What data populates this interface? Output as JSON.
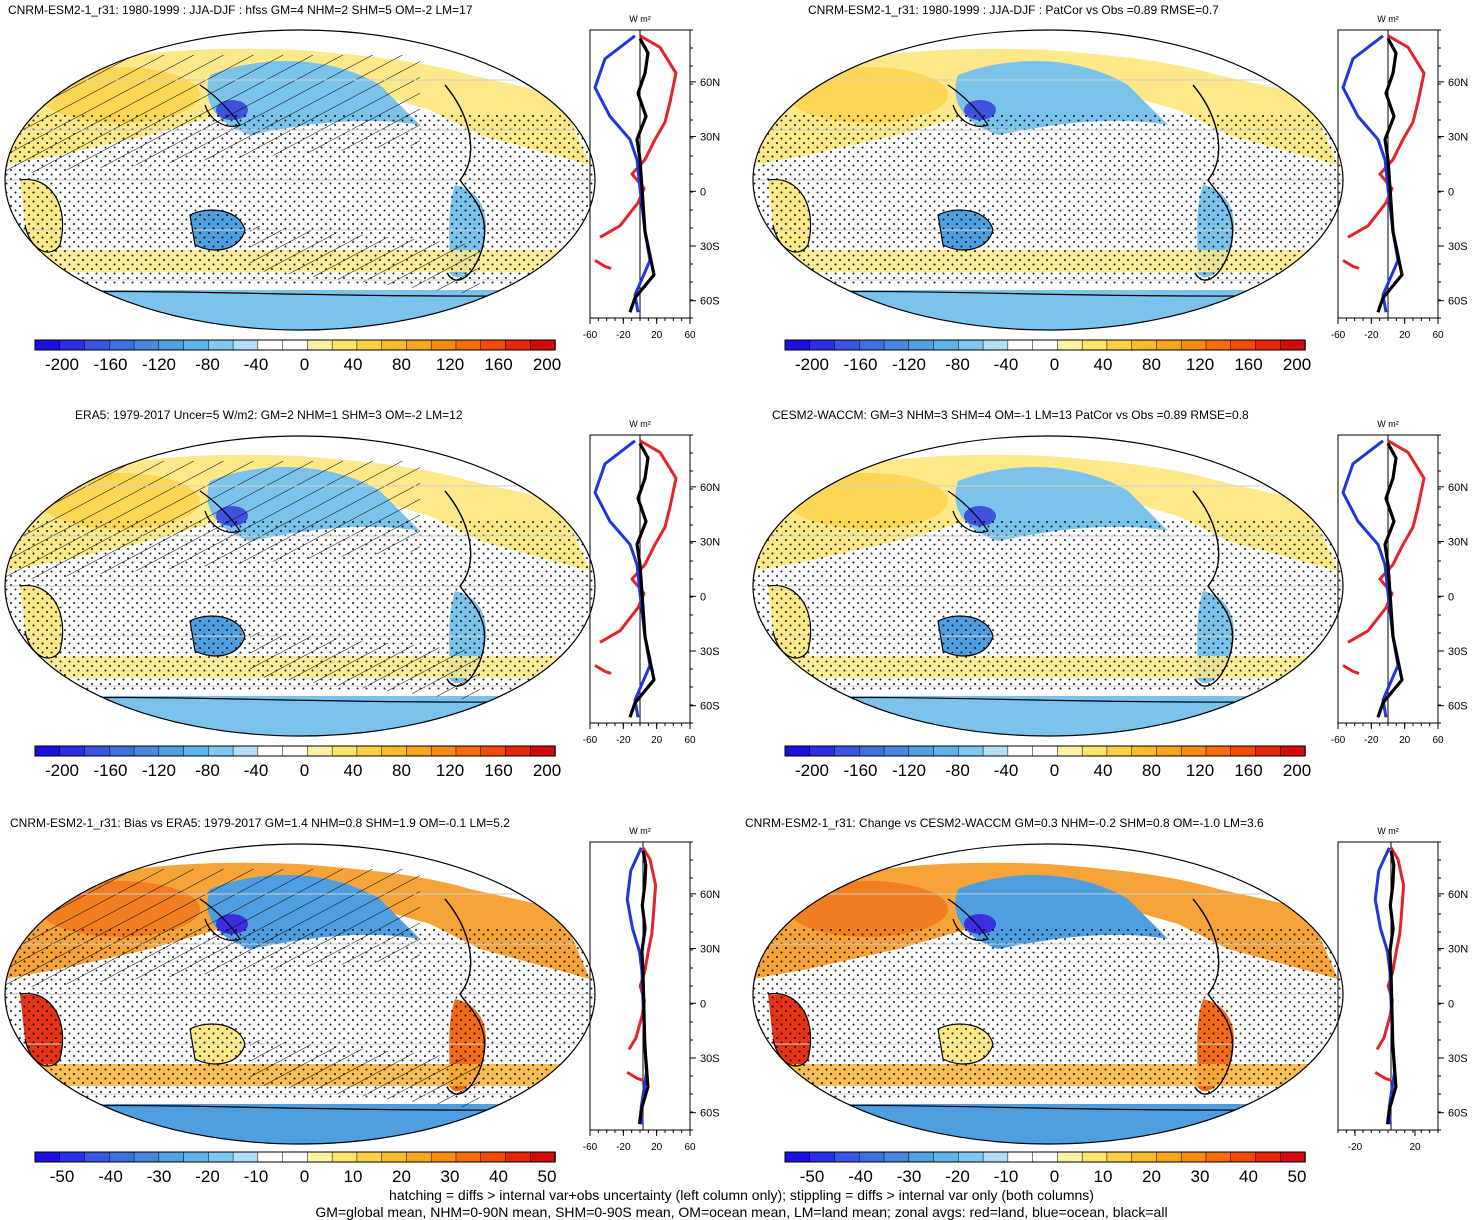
{
  "figure": {
    "colors": {
      "land": "#e4232a",
      "ocean": "#1f35e0",
      "all": "#000000",
      "scale_main": [
        "#1a10e0",
        "#2a2ee6",
        "#3a55e0",
        "#3f6fdd",
        "#4a88e0",
        "#51a1e3",
        "#5cb6ea",
        "#80c8ee",
        "#b3def3",
        "#ffffff",
        "#ffffff",
        "#fdf2a6",
        "#fde46a",
        "#fcd047",
        "#fbba2b",
        "#f9a41c",
        "#f88b12",
        "#f56d0b",
        "#f04b06",
        "#e5260a",
        "#d10b0b"
      ]
    },
    "colorbars": {
      "main_labels": [
        "-200",
        "-160",
        "-120",
        "-80",
        "-40",
        "0",
        "40",
        "80",
        "120",
        "160",
        "200"
      ],
      "diff_labels": [
        "-50",
        "-40",
        "-30",
        "-20",
        "-10",
        "0",
        "10",
        "20",
        "30",
        "40",
        "50"
      ]
    },
    "zonal": {
      "units": "W m²",
      "lat_labels": [
        "60N",
        "30N",
        "0",
        "30S",
        "60S"
      ],
      "x_labels_main": [
        "-60",
        "-20",
        "20",
        "60"
      ],
      "x_labels_diff_right": [
        "-20",
        "20"
      ]
    },
    "panels": [
      {
        "id": "p1",
        "title": "CNRM-ESM2-1_r31: 1980-1999 : JJA-DJF : hfss GM=4 NHM=2 SHM=5 OM=-2 LM=17"
      },
      {
        "id": "p2",
        "title": "CNRM-ESM2-1_r31: 1980-1999 : JJA-DJF : PatCor vs Obs =0.89 RMSE=0.7"
      },
      {
        "id": "p3",
        "title": "ERA5: 1979-2017 Uncer=5 W/m2: GM=2 NHM=1 SHM=3 OM=-2 LM=12"
      },
      {
        "id": "p4",
        "title": "CESM2-WACCM: GM=3 NHM=3 SHM=4 OM=-1 LM=13 PatCor vs Obs =0.89 RMSE=0.8"
      },
      {
        "id": "p5",
        "title": "CNRM-ESM2-1_r31: Bias vs ERA5: 1979-2017 GM=1.4 NHM=0.8 SHM=1.9 OM=-0.1 LM=5.2"
      },
      {
        "id": "p6",
        "title": "CNRM-ESM2-1_r31: Change vs CESM2-WACCM GM=0.3 NHM=-0.2 SHM=0.8 OM=-1.0 LM=3.6"
      }
    ],
    "footer": {
      "line1": "hatching = diffs > internal var+obs uncertainty (left column only); stippling = diffs > internal var only (both columns)",
      "line2": "GM=global mean, NHM=0-90N mean, SHM=0-90S mean, OM=ocean mean, LM=land mean; zonal avgs: red=land, blue=ocean, black=all"
    }
  }
}
